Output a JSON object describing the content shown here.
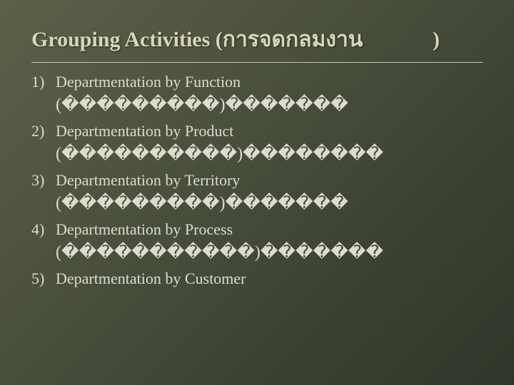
{
  "slide": {
    "background": "linear-gradient(135deg, #5a6048 0%, #4e5440 30%, #3c4233 70%, #2f3528 100%)",
    "text_color": "#e8e6d8",
    "title_color": "#d9d5b8",
    "font_family": "Georgia, 'Times New Roman', serif",
    "title_fontsize": 30,
    "body_fontsize": 22,
    "sub_fontsize": 24
  },
  "title": {
    "prefix": "Grouping Activities (",
    "thai": "การจดกลมงาน",
    "close": ")"
  },
  "items": [
    {
      "num": "1)",
      "label": "Departmentation by Function",
      "sub": "(���������)�������"
    },
    {
      "num": "2)",
      "label": "Departmentation by Product",
      "sub": "(����������)��������"
    },
    {
      "num": "3)",
      "label": "Departmentation by Territory",
      "sub": "(���������)�������"
    },
    {
      "num": "4)",
      "label": "Departmentation by Process",
      "sub": "(�����������)�������"
    },
    {
      "num": "5)",
      "label": "Departmentation by Customer",
      "sub": ""
    }
  ]
}
